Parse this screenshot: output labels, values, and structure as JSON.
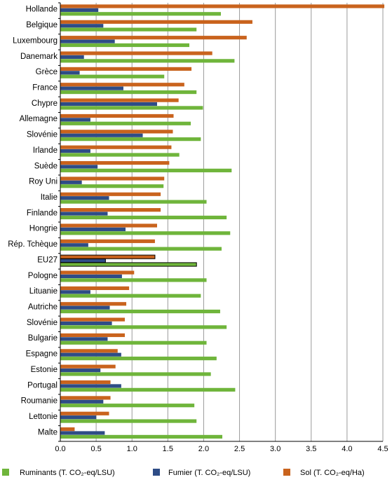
{
  "chart_data": {
    "type": "bar",
    "orientation": "horizontal",
    "title": "",
    "xlabel": "",
    "ylabel": "",
    "xlim": [
      0,
      4.5
    ],
    "xticks": [
      "0.0",
      "0.5",
      "1.0",
      "1.5",
      "2.0",
      "2.5",
      "3.0",
      "3.5",
      "4.0",
      "4.5"
    ],
    "grid": "vertical",
    "legend_position": "bottom",
    "categories": [
      "Hollande",
      "Belgique",
      "Luxembourg",
      "Danemark",
      "Grèce",
      "France",
      "Chypre",
      "Allemagne",
      "Slovénie",
      "Irlande",
      "Suède",
      "Roy Uni",
      "Italie",
      "Finlande",
      "Hongrie",
      "Rép. Tchèque",
      "EU27",
      "Pologne",
      "Lituanie",
      "Autriche",
      "Slovénie",
      "Bulgarie",
      "Espagne",
      "Estonie",
      "Portugal",
      "Roumanie",
      "Lettonie",
      "Malte"
    ],
    "highlighted_category": "EU27",
    "series": [
      {
        "name": "Sol (T. CO₂-eq/Ha)",
        "color": "#c9631d",
        "values": [
          4.52,
          2.68,
          2.6,
          2.12,
          1.83,
          1.73,
          1.65,
          1.58,
          1.57,
          1.55,
          1.52,
          1.45,
          1.4,
          1.4,
          1.35,
          1.32,
          1.32,
          1.03,
          0.96,
          0.92,
          0.9,
          0.9,
          0.8,
          0.77,
          0.7,
          0.7,
          0.68,
          0.2
        ]
      },
      {
        "name": "Fumier (T. CO₂-eq/LSU)",
        "color": "#2e4c86",
        "values": [
          0.53,
          0.6,
          0.76,
          0.33,
          0.27,
          0.88,
          1.35,
          0.42,
          1.15,
          0.42,
          0.52,
          0.3,
          0.68,
          0.66,
          0.91,
          0.39,
          0.63,
          0.86,
          0.42,
          0.69,
          0.72,
          0.66,
          0.85,
          0.56,
          0.85,
          0.6,
          0.5,
          0.62
        ]
      },
      {
        "name": "Ruminants (T. CO₂-eq/LSU)",
        "color": "#6fb53b",
        "values": [
          2.24,
          1.9,
          1.8,
          2.43,
          1.45,
          1.9,
          1.99,
          1.82,
          1.96,
          1.66,
          2.39,
          1.44,
          2.04,
          2.32,
          2.37,
          2.25,
          1.9,
          2.04,
          1.96,
          2.23,
          2.32,
          2.04,
          2.18,
          2.1,
          2.44,
          1.87,
          1.9,
          2.26
        ]
      }
    ],
    "legend": [
      {
        "label": "Ruminants (T. CO₂-eq/LSU)",
        "color": "#6fb53b"
      },
      {
        "label": "Fumier (T. CO₂-eq/LSU)",
        "color": "#2e4c86"
      },
      {
        "label": "Sol (T. CO₂-eq/Ha)",
        "color": "#c9631d"
      }
    ]
  }
}
